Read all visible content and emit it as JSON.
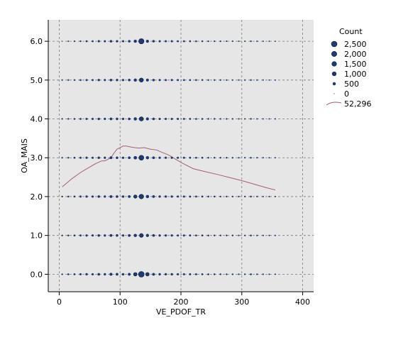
{
  "chart_data": {
    "type": "scatter",
    "title": "",
    "xlabel": "VE_PDOF_TR",
    "ylabel": "OA_MAIS",
    "xlim": [
      -18,
      418
    ],
    "ylim": [
      -0.45,
      6.55
    ],
    "xticks": [
      0,
      100,
      200,
      300,
      400
    ],
    "xtick_labels": [
      "0",
      "100",
      "200",
      "300",
      "400"
    ],
    "yticks": [
      0,
      1,
      2,
      3,
      4,
      5,
      6
    ],
    "ytick_labels": [
      "0.0",
      "1.0",
      "2.0",
      "3.0",
      "4.0",
      "5.0",
      "6.0"
    ],
    "grid": true,
    "size_legend": {
      "title": "Count",
      "entries": [
        {
          "label": "2,500",
          "count": 2500
        },
        {
          "label": "2,000",
          "count": 2000
        },
        {
          "label": "1,500",
          "count": 1500
        },
        {
          "label": "1,000",
          "count": 1000
        },
        {
          "label": "500",
          "count": 500
        },
        {
          "label": "0",
          "count": 0
        }
      ],
      "line_label": "52,296"
    },
    "rows": [
      {
        "y": 0,
        "x": [
          5,
          15,
          25,
          35,
          45,
          55,
          65,
          75,
          85,
          95,
          105,
          115,
          125,
          135,
          145,
          155,
          165,
          175,
          185,
          195,
          205,
          215,
          225,
          235,
          245,
          255,
          265,
          275,
          285,
          295,
          305,
          315,
          325,
          335,
          345,
          355
        ],
        "counts": [
          30,
          60,
          80,
          120,
          180,
          150,
          260,
          200,
          380,
          280,
          200,
          330,
          720,
          2500,
          700,
          320,
          200,
          170,
          190,
          140,
          120,
          110,
          90,
          80,
          60,
          55,
          45,
          40,
          35,
          30,
          25,
          60,
          25,
          20,
          15,
          10
        ]
      },
      {
        "y": 1,
        "x": [
          5,
          15,
          25,
          35,
          45,
          55,
          65,
          75,
          85,
          95,
          105,
          115,
          125,
          135,
          145,
          155,
          165,
          175,
          185,
          195,
          205,
          215,
          225,
          235,
          245,
          255,
          265,
          275,
          285,
          295,
          305,
          315,
          325,
          335,
          345,
          355
        ],
        "counts": [
          25,
          50,
          70,
          100,
          150,
          130,
          220,
          170,
          300,
          230,
          170,
          280,
          520,
          900,
          480,
          260,
          170,
          150,
          160,
          120,
          100,
          90,
          75,
          65,
          50,
          45,
          38,
          32,
          28,
          24,
          20,
          50,
          20,
          16,
          12,
          8
        ]
      },
      {
        "y": 2,
        "x": [
          5,
          15,
          25,
          35,
          45,
          55,
          65,
          75,
          85,
          95,
          105,
          115,
          125,
          135,
          145,
          155,
          165,
          175,
          185,
          195,
          205,
          215,
          225,
          235,
          245,
          255,
          265,
          275,
          285,
          295,
          305,
          315,
          325,
          335,
          345,
          355
        ],
        "counts": [
          25,
          55,
          75,
          110,
          160,
          140,
          240,
          180,
          330,
          250,
          190,
          300,
          620,
          1450,
          560,
          280,
          180,
          160,
          170,
          130,
          110,
          100,
          80,
          70,
          55,
          50,
          40,
          35,
          30,
          26,
          22,
          55,
          22,
          18,
          14,
          9
        ]
      },
      {
        "y": 3,
        "x": [
          5,
          15,
          25,
          35,
          45,
          55,
          65,
          75,
          85,
          95,
          105,
          115,
          125,
          135,
          145,
          155,
          165,
          175,
          185,
          195,
          205,
          215,
          225,
          235,
          245,
          255,
          265,
          275,
          285,
          295,
          305,
          315,
          325,
          335,
          345,
          355
        ],
        "counts": [
          20,
          45,
          65,
          95,
          140,
          120,
          210,
          160,
          290,
          220,
          170,
          270,
          600,
          1700,
          520,
          250,
          160,
          140,
          150,
          115,
          95,
          85,
          70,
          60,
          48,
          42,
          35,
          30,
          26,
          22,
          18,
          48,
          18,
          15,
          11,
          7
        ]
      },
      {
        "y": 4,
        "x": [
          5,
          15,
          25,
          35,
          45,
          55,
          65,
          75,
          85,
          95,
          105,
          115,
          125,
          135,
          145,
          155,
          165,
          175,
          185,
          195,
          205,
          215,
          225,
          235,
          245,
          255,
          265,
          275,
          285,
          295,
          305,
          315,
          325,
          335,
          345,
          355
        ],
        "counts": [
          18,
          40,
          55,
          85,
          130,
          110,
          190,
          150,
          260,
          200,
          150,
          240,
          500,
          1150,
          430,
          220,
          140,
          125,
          135,
          100,
          85,
          75,
          62,
          55,
          42,
          38,
          30,
          26,
          22,
          18,
          15,
          40,
          15,
          12,
          9,
          6
        ]
      },
      {
        "y": 5,
        "x": [
          5,
          15,
          25,
          35,
          45,
          55,
          65,
          75,
          85,
          95,
          105,
          115,
          125,
          135,
          145,
          155,
          165,
          175,
          185,
          195,
          205,
          215,
          225,
          235,
          245,
          255,
          265,
          275,
          285,
          295,
          305,
          315,
          325,
          335,
          345,
          355
        ],
        "counts": [
          10,
          30,
          45,
          70,
          110,
          90,
          170,
          130,
          240,
          180,
          140,
          220,
          470,
          1050,
          400,
          200,
          130,
          110,
          120,
          90,
          75,
          65,
          55,
          48,
          36,
          32,
          26,
          22,
          18,
          15,
          12,
          35,
          12,
          10,
          7,
          4
        ]
      },
      {
        "y": 6,
        "x": [
          5,
          15,
          25,
          35,
          45,
          55,
          65,
          75,
          85,
          95,
          105,
          115,
          125,
          135,
          145,
          155,
          165,
          175,
          185,
          195,
          205,
          215,
          225,
          235,
          245,
          255,
          265,
          275,
          285,
          295,
          305,
          315,
          325,
          335,
          345,
          355
        ],
        "counts": [
          0,
          10,
          20,
          40,
          80,
          70,
          140,
          110,
          230,
          170,
          130,
          210,
          480,
          2100,
          420,
          190,
          120,
          100,
          115,
          85,
          70,
          60,
          50,
          44,
          32,
          28,
          22,
          18,
          15,
          12,
          10,
          30,
          10,
          8,
          5,
          2
        ]
      }
    ],
    "fit_line": {
      "label": "52,296",
      "x": [
        5,
        20,
        35,
        50,
        60,
        70,
        75,
        85,
        90,
        95,
        105,
        110,
        120,
        130,
        140,
        150,
        160,
        170,
        180,
        200,
        220,
        240,
        260,
        280,
        300,
        320,
        340,
        355
      ],
      "y": [
        2.25,
        2.45,
        2.62,
        2.76,
        2.85,
        2.92,
        2.92,
        3.0,
        3.12,
        3.22,
        3.3,
        3.3,
        3.27,
        3.25,
        3.26,
        3.22,
        3.2,
        3.13,
        3.07,
        2.88,
        2.72,
        2.64,
        2.57,
        2.49,
        2.41,
        2.32,
        2.23,
        2.17
      ]
    },
    "colors": {
      "plot_background": "#e6e6e6",
      "grid": "#7a7a7a",
      "point_fill": "#1f3a73",
      "point_stroke": "#0b1a38",
      "fit_line": "#a66070"
    }
  }
}
